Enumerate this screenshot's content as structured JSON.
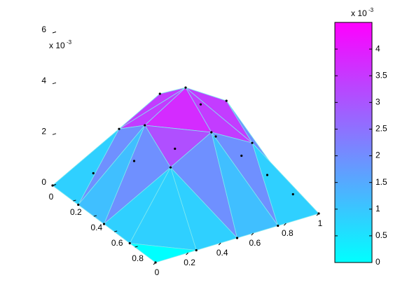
{
  "chart_data": {
    "type": "trisurf",
    "x": [
      0,
      0.25,
      0.5,
      0.75,
      1,
      0,
      0.25,
      0.5,
      0.75,
      1,
      0,
      0.25,
      0.5,
      0.75,
      1,
      0,
      0.25,
      0.5,
      0.75,
      1,
      0,
      0.25,
      0.5,
      0.75,
      1
    ],
    "y": [
      0,
      0,
      0,
      0,
      0,
      0.25,
      0.25,
      0.25,
      0.25,
      0.25,
      0.5,
      0.5,
      0.5,
      0.5,
      0.5,
      0.75,
      0.75,
      0.75,
      0.75,
      0.75,
      1,
      1,
      1,
      1,
      1
    ],
    "z": [
      0,
      0,
      0,
      0,
      0,
      0,
      0.0025,
      0.0034,
      0.0025,
      0,
      0,
      0.0034,
      0.0044,
      0.0034,
      0,
      0,
      0.0025,
      0.0034,
      0.0025,
      0,
      0,
      0,
      0,
      0,
      0
    ],
    "xlim": [
      0,
      1
    ],
    "ylim": [
      0,
      1
    ],
    "zlim": [
      0,
      0.006
    ],
    "xticks": [
      0,
      0.2,
      0.4,
      0.6,
      0.8,
      1
    ],
    "yticks": [
      0,
      0.2,
      0.4,
      0.6,
      0.8
    ],
    "zticks": [
      0,
      {
        "value": 0.002,
        "label": "2"
      },
      {
        "value": 0.004,
        "label": "4"
      },
      {
        "value": 0.006,
        "label": "6"
      }
    ],
    "zscale": {
      "base": "x 10",
      "exponent": "-3"
    },
    "colormap": [
      "#00ffff",
      "#ff00ff"
    ],
    "colorbar": {
      "clim": [
        0,
        0.0045
      ],
      "ticks": [
        0,
        {
          "value": 0.0005,
          "label": "0.5"
        },
        {
          "value": 0.001,
          "label": "1"
        },
        {
          "value": 0.0015,
          "label": "1.5"
        },
        {
          "value": 0.002,
          "label": "2"
        },
        {
          "value": 0.0025,
          "label": "2.5"
        },
        {
          "value": 0.003,
          "label": "3"
        },
        {
          "value": 0.0035,
          "label": "3.5"
        },
        {
          "value": 0.004,
          "label": "4"
        }
      ],
      "scale": {
        "base": "x 10",
        "exponent": "-3"
      }
    }
  }
}
